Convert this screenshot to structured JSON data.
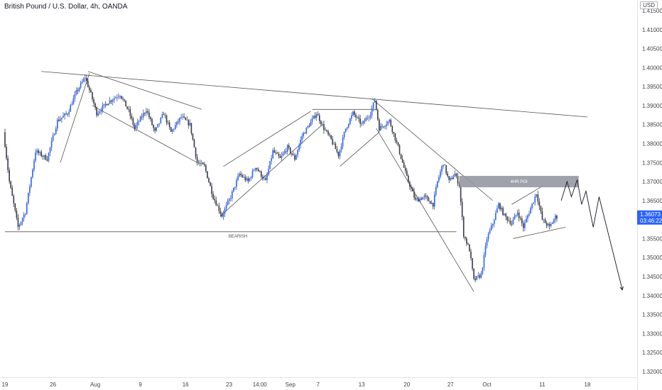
{
  "header": {
    "title": "British Pound / U.S. Dollar, 4h, OANDA",
    "currency": "USD"
  },
  "chart_data": {
    "type": "candlestick",
    "y_ticks": [
      "1.41500",
      "1.41000",
      "1.40500",
      "1.40000",
      "1.39500",
      "1.39000",
      "1.38500",
      "1.38000",
      "1.37500",
      "1.37000",
      "1.36500",
      "1.36000",
      "1.35500",
      "1.35000",
      "1.34500",
      "1.34000",
      "1.33500",
      "1.33000",
      "1.32500",
      "1.32000"
    ],
    "y_range": [
      1.3185,
      1.4178
    ],
    "x_ticks": [
      {
        "label": "19",
        "i": 0
      },
      {
        "label": "26",
        "i": 33
      },
      {
        "label": "Aug",
        "i": 62
      },
      {
        "label": "9",
        "i": 93
      },
      {
        "label": "16",
        "i": 124
      },
      {
        "label": "23",
        "i": 154
      },
      {
        "label": "14:00",
        "i": 175
      },
      {
        "label": "Sep",
        "i": 196
      },
      {
        "label": "7",
        "i": 215
      },
      {
        "label": "13",
        "i": 245
      },
      {
        "label": "20",
        "i": 276
      },
      {
        "label": "27",
        "i": 306
      },
      {
        "label": "Oct",
        "i": 331
      },
      {
        "label": "11",
        "i": 369
      },
      {
        "label": "18",
        "i": 400
      }
    ],
    "candle_count": 380,
    "price_path": [
      [
        0,
        1.383
      ],
      [
        4,
        1.37
      ],
      [
        10,
        1.358
      ],
      [
        15,
        1.362
      ],
      [
        22,
        1.378
      ],
      [
        30,
        1.376
      ],
      [
        37,
        1.386
      ],
      [
        44,
        1.388
      ],
      [
        50,
        1.3935
      ],
      [
        56,
        1.3975
      ],
      [
        60,
        1.393
      ],
      [
        64,
        1.388
      ],
      [
        72,
        1.391
      ],
      [
        80,
        1.393
      ],
      [
        86,
        1.3885
      ],
      [
        90,
        1.384
      ],
      [
        98,
        1.389
      ],
      [
        104,
        1.383
      ],
      [
        110,
        1.388
      ],
      [
        115,
        1.383
      ],
      [
        122,
        1.387
      ],
      [
        128,
        1.385
      ],
      [
        133,
        1.375
      ],
      [
        138,
        1.374
      ],
      [
        144,
        1.366
      ],
      [
        150,
        1.361
      ],
      [
        156,
        1.366
      ],
      [
        162,
        1.372
      ],
      [
        168,
        1.37
      ],
      [
        173,
        1.374
      ],
      [
        180,
        1.37
      ],
      [
        185,
        1.378
      ],
      [
        190,
        1.376
      ],
      [
        195,
        1.379
      ],
      [
        200,
        1.376
      ],
      [
        205,
        1.382
      ],
      [
        210,
        1.385
      ],
      [
        215,
        1.388
      ],
      [
        220,
        1.384
      ],
      [
        225,
        1.381
      ],
      [
        230,
        1.377
      ],
      [
        235,
        1.384
      ],
      [
        240,
        1.388
      ],
      [
        246,
        1.385
      ],
      [
        252,
        1.388
      ],
      [
        255,
        1.3915
      ],
      [
        258,
        1.384
      ],
      [
        265,
        1.386
      ],
      [
        271,
        1.379
      ],
      [
        277,
        1.371
      ],
      [
        283,
        1.365
      ],
      [
        289,
        1.366
      ],
      [
        295,
        1.364
      ],
      [
        298,
        1.37
      ],
      [
        302,
        1.375
      ],
      [
        306,
        1.37
      ],
      [
        310,
        1.372
      ],
      [
        313,
        1.369
      ],
      [
        316,
        1.356
      ],
      [
        320,
        1.352
      ],
      [
        323,
        1.344
      ],
      [
        328,
        1.3455
      ],
      [
        332,
        1.355
      ],
      [
        336,
        1.359
      ],
      [
        340,
        1.364
      ],
      [
        344,
        1.361
      ],
      [
        349,
        1.359
      ],
      [
        353,
        1.362
      ],
      [
        357,
        1.358
      ],
      [
        362,
        1.363
      ],
      [
        366,
        1.367
      ],
      [
        370,
        1.36
      ],
      [
        375,
        1.358
      ],
      [
        379,
        1.3607
      ]
    ],
    "trendlines": [
      {
        "from": [
          25,
          1.399
        ],
        "to": [
          400,
          1.387
        ]
      },
      {
        "from": [
          0,
          1.3568
        ],
        "to": [
          310,
          1.3568
        ]
      },
      {
        "from": [
          38,
          1.375
        ],
        "to": [
          58,
          1.3985
        ]
      },
      {
        "from": [
          57,
          1.399
        ],
        "to": [
          135,
          1.389
        ]
      },
      {
        "from": [
          60,
          1.39
        ],
        "to": [
          132,
          1.375
        ]
      },
      {
        "from": [
          148,
          1.361
        ],
        "to": [
          218,
          1.385
        ]
      },
      {
        "from": [
          150,
          1.374
        ],
        "to": [
          210,
          1.3885
        ]
      },
      {
        "from": [
          211,
          1.389
        ],
        "to": [
          255,
          1.389
        ]
      },
      {
        "from": [
          230,
          1.374
        ],
        "to": [
          257,
          1.383
        ]
      },
      {
        "from": [
          252,
          1.3918
        ],
        "to": [
          335,
          1.365
        ]
      },
      {
        "from": [
          255,
          1.384
        ],
        "to": [
          322,
          1.341
        ]
      },
      {
        "from": [
          348,
          1.364
        ],
        "to": [
          370,
          1.369
        ]
      },
      {
        "from": [
          349,
          1.355
        ],
        "to": [
          385,
          1.358
        ]
      }
    ],
    "projection": [
      [
        382,
        1.365
      ],
      [
        386,
        1.37
      ],
      [
        389,
        1.366
      ],
      [
        393,
        1.3705
      ],
      [
        396,
        1.364
      ],
      [
        399,
        1.3675
      ],
      [
        404,
        1.358
      ],
      [
        408,
        1.366
      ],
      [
        424,
        1.3415
      ]
    ],
    "poi_zone": {
      "label": "4HR POI",
      "i_start": 312,
      "i_end": 394,
      "y_top": 1.3715,
      "y_bottom": 1.3685
    },
    "annotation": {
      "label": "BEARISH",
      "i": 160,
      "y": 1.3568
    },
    "last_price": {
      "value": "1.36073",
      "timer": "03:46:22",
      "y": 1.36073
    }
  }
}
